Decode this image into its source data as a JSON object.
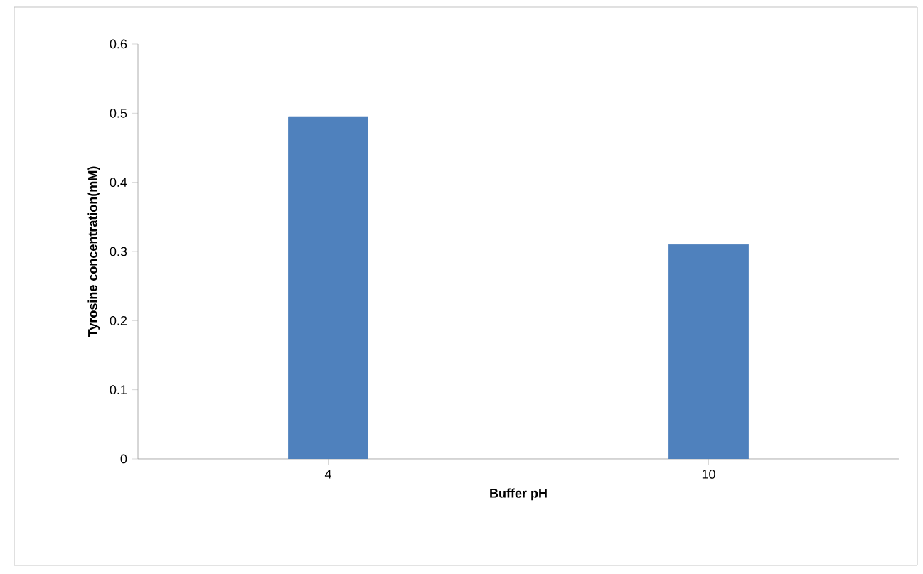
{
  "chart_data": {
    "type": "bar",
    "xlabel": "Buffer pH",
    "ylabel": "Tyrosine concentration(mM)",
    "categories": [
      "4",
      "10"
    ],
    "values": [
      0.495,
      0.31
    ],
    "color": "#4f81bd",
    "ylim": [
      0,
      0.6
    ],
    "yticks": [
      0,
      0.1,
      0.2,
      0.3,
      0.4,
      0.5,
      0.6
    ],
    "grid": false
  }
}
